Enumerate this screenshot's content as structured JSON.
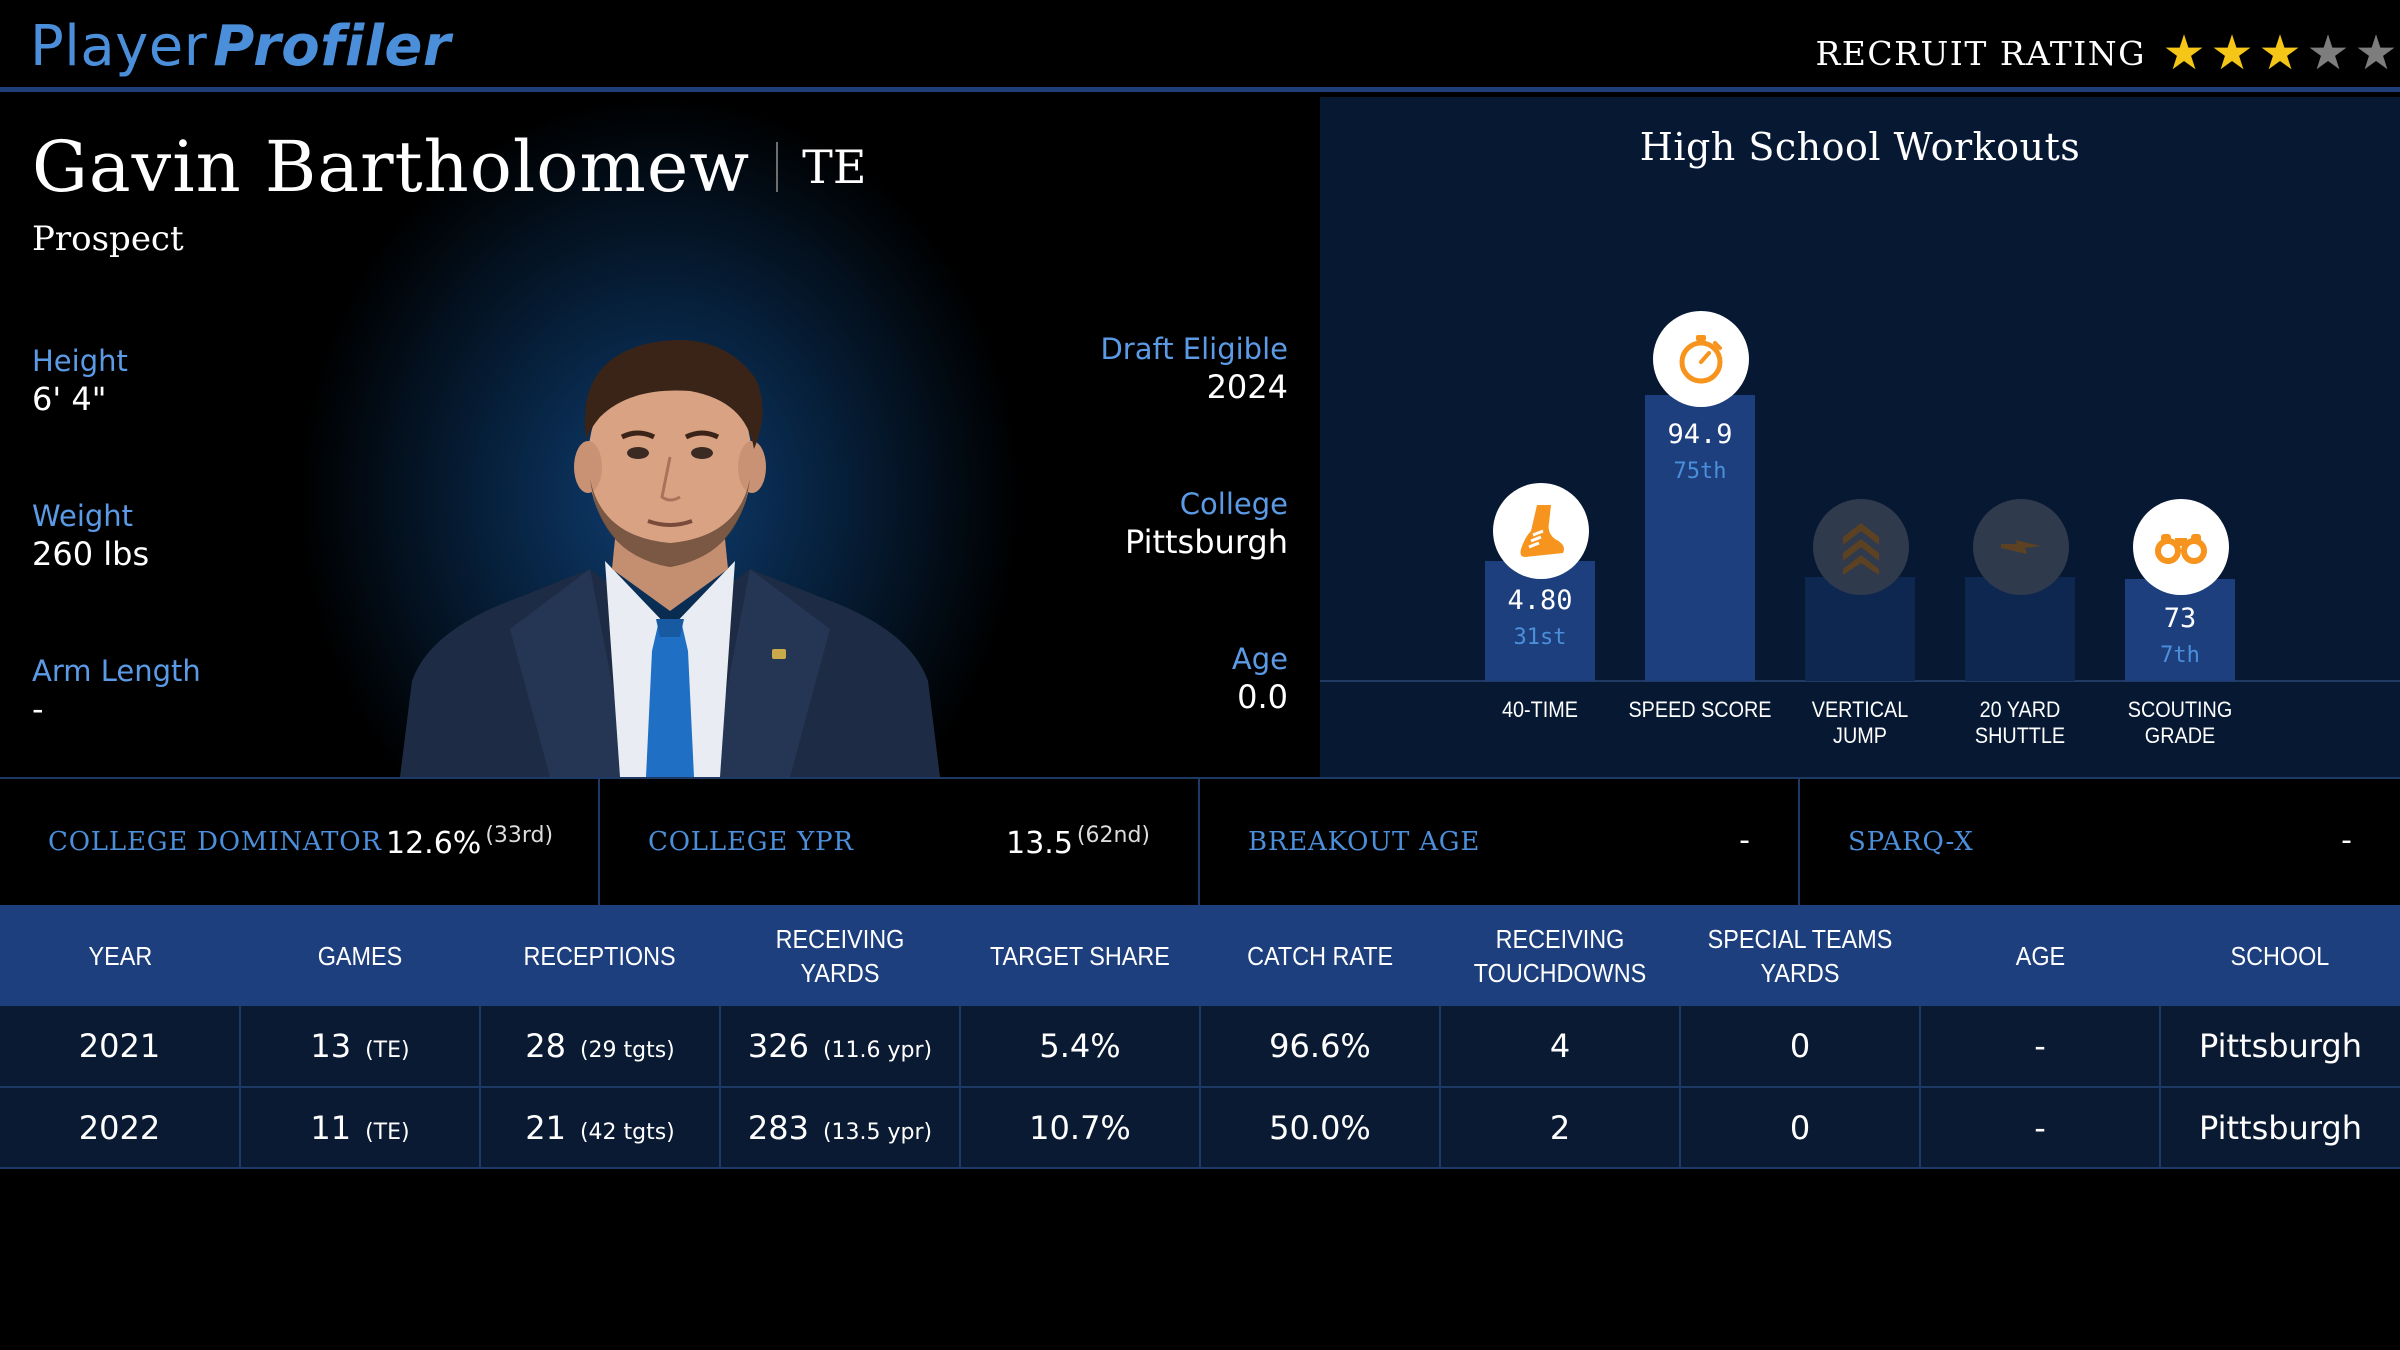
{
  "header": {
    "logo_part1": "Player",
    "logo_part2": "Profiler",
    "rating_label": "RECRUIT RATING",
    "rating_stars": 3,
    "rating_max": 5,
    "star_on_color": "#f5c518",
    "star_off_color": "#7d7d7d"
  },
  "player": {
    "name": "Gavin Bartholomew",
    "position": "TE",
    "status": "Prospect",
    "height_label": "Height",
    "height": "6' 4\"",
    "weight_label": "Weight",
    "weight": "260 lbs",
    "arm_label": "Arm Length",
    "arm": "-",
    "draft_label": "Draft Eligible",
    "draft": "2024",
    "college_label": "College",
    "college": "Pittsburgh",
    "age_label": "Age",
    "age": "0.0"
  },
  "workouts": {
    "title": "High School Workouts",
    "items": [
      {
        "label": "40-TIME",
        "value": "4.80",
        "rank": "31st",
        "percentile": 31,
        "icon": "running-shoe-icon",
        "active": true
      },
      {
        "label": "SPEED SCORE",
        "value": "94.9",
        "rank": "75th",
        "percentile": 75,
        "icon": "stopwatch-icon",
        "active": true
      },
      {
        "label": "VERTICAL JUMP",
        "value": "",
        "rank": "",
        "percentile": null,
        "icon": "chevrons-up-icon",
        "active": false
      },
      {
        "label": "20 YARD SHUTTLE",
        "value": "",
        "rank": "",
        "percentile": null,
        "icon": "lightning-icon",
        "active": false
      },
      {
        "label": "SCOUTING GRADE",
        "value": "73",
        "rank": "7th",
        "percentile": 7,
        "icon": "binoculars-icon",
        "active": true
      }
    ],
    "icon_color": "#f7941d"
  },
  "metrics": [
    {
      "label": "College Dominator",
      "value": "12.6%",
      "rank": "(33rd)"
    },
    {
      "label": "College YPR",
      "value": "13.5",
      "rank": "(62nd)"
    },
    {
      "label": "Breakout Age",
      "value": "-",
      "rank": ""
    },
    {
      "label": "SPARQ-x",
      "value": "-",
      "rank": ""
    }
  ],
  "table": {
    "headers": [
      "YEAR",
      "GAMES",
      "RECEPTIONS",
      "RECEIVING YARDS",
      "TARGET SHARE",
      "CATCH RATE",
      "RECEIVING TOUCHDOWNS",
      "SPECIAL TEAMS YARDS",
      "AGE",
      "SCHOOL"
    ],
    "rows": [
      {
        "year": "2021",
        "games": "13",
        "games_sub": "(TE)",
        "rec": "28",
        "rec_sub": "(29 tgts)",
        "yds": "326",
        "yds_sub": "(11.6 ypr)",
        "target_share": "5.4%",
        "catch_rate": "96.6%",
        "td": "4",
        "st_yds": "0",
        "age": "-",
        "school": "Pittsburgh"
      },
      {
        "year": "2022",
        "games": "11",
        "games_sub": "(TE)",
        "rec": "21",
        "rec_sub": "(42 tgts)",
        "yds": "283",
        "yds_sub": "(13.5 ypr)",
        "target_share": "10.7%",
        "catch_rate": "50.0%",
        "td": "2",
        "st_yds": "0",
        "age": "-",
        "school": "Pittsburgh"
      }
    ]
  }
}
